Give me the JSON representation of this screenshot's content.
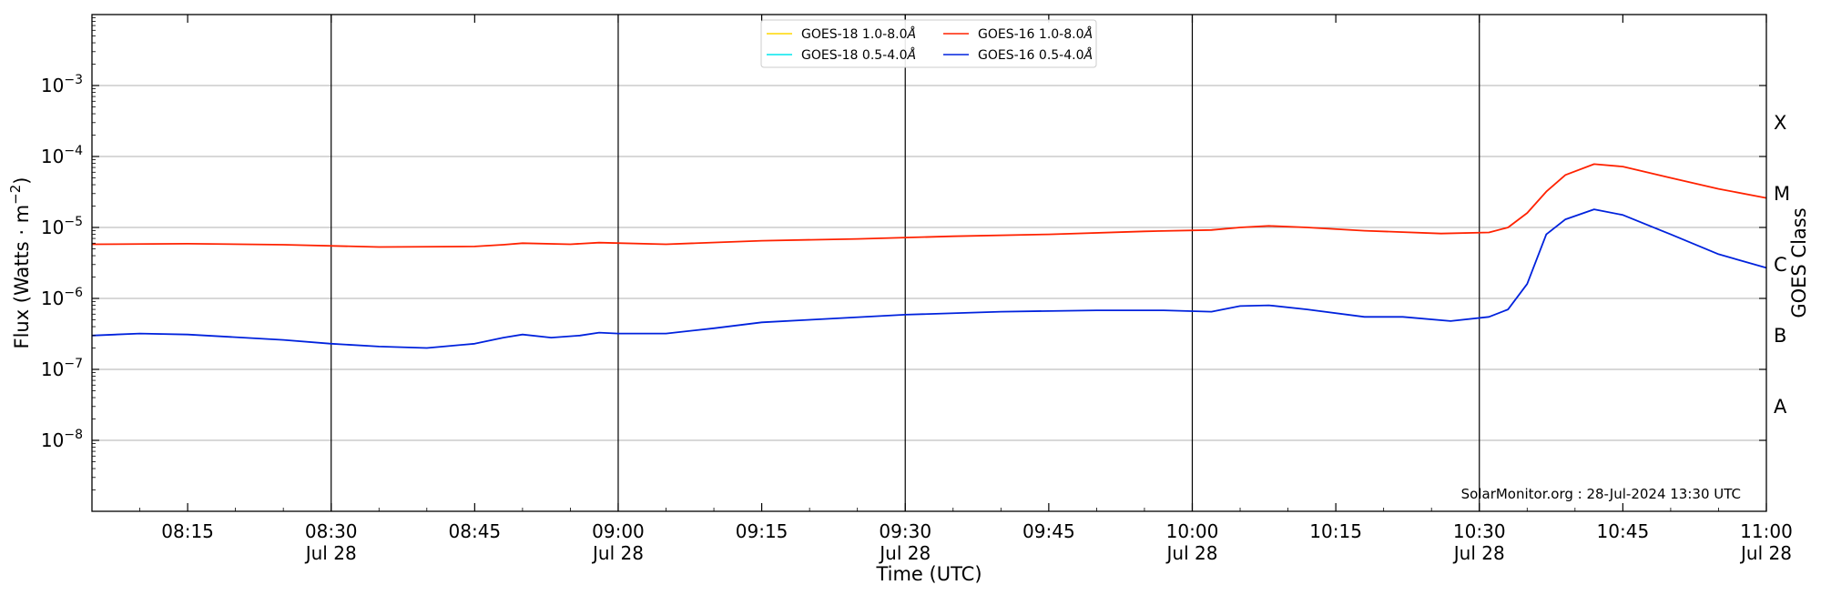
{
  "chart_data": {
    "type": "line",
    "title": "",
    "xlabel": "Time (UTC)",
    "ylabel": "Flux (Watts · m",
    "ylabel_sup": "−2",
    "ylabel_close": ")",
    "y2label": "GOES Class",
    "yscale": "log",
    "xlim": [
      "08:05",
      "11:00"
    ],
    "ylim": [
      1e-09,
      0.01
    ],
    "grid": "horizontal",
    "legend_position": "top-center",
    "x_ticks": [
      {
        "time": "08:15",
        "label": "08:15",
        "date": ""
      },
      {
        "time": "08:30",
        "label": "08:30",
        "date": "Jul 28"
      },
      {
        "time": "08:45",
        "label": "08:45",
        "date": ""
      },
      {
        "time": "09:00",
        "label": "09:00",
        "date": "Jul 28"
      },
      {
        "time": "09:15",
        "label": "09:15",
        "date": ""
      },
      {
        "time": "09:30",
        "label": "09:30",
        "date": "Jul 28"
      },
      {
        "time": "09:45",
        "label": "09:45",
        "date": ""
      },
      {
        "time": "10:00",
        "label": "10:00",
        "date": "Jul 28"
      },
      {
        "time": "10:15",
        "label": "10:15",
        "date": ""
      },
      {
        "time": "10:30",
        "label": "10:30",
        "date": "Jul 28"
      },
      {
        "time": "10:45",
        "label": "10:45",
        "date": ""
      },
      {
        "time": "11:00",
        "label": "11:00",
        "date": "Jul 28"
      }
    ],
    "vlines": [
      "08:30",
      "09:00",
      "09:30",
      "10:00",
      "10:30"
    ],
    "y_ticks": [
      {
        "value": 1e-08,
        "base": "10",
        "exp": "−8"
      },
      {
        "value": 1e-07,
        "base": "10",
        "exp": "−7"
      },
      {
        "value": 1e-06,
        "base": "10",
        "exp": "−6"
      },
      {
        "value": 1e-05,
        "base": "10",
        "exp": "−5"
      },
      {
        "value": 0.0001,
        "base": "10",
        "exp": "−4"
      },
      {
        "value": 0.001,
        "base": "10",
        "exp": "−3"
      }
    ],
    "goes_classes": [
      {
        "label": "A",
        "value": 3e-08
      },
      {
        "label": "B",
        "value": 3e-07
      },
      {
        "label": "C",
        "value": 3e-06
      },
      {
        "label": "M",
        "value": 3e-05
      },
      {
        "label": "X",
        "value": 0.0003
      }
    ],
    "series": [
      {
        "name": "GOES-18 1.0-8.0",
        "unit": "Å",
        "color": "#ffd700",
        "points": []
      },
      {
        "name": "GOES-18 0.5-4.0",
        "unit": "Å",
        "color": "#00e5ee",
        "points": []
      },
      {
        "name": "GOES-16 1.0-8.0",
        "unit": "Å",
        "color": "#ff2200",
        "points": [
          [
            "08:05",
            5.8e-06
          ],
          [
            "08:15",
            5.9e-06
          ],
          [
            "08:25",
            5.7e-06
          ],
          [
            "08:35",
            5.3e-06
          ],
          [
            "08:45",
            5.4e-06
          ],
          [
            "08:48",
            5.7e-06
          ],
          [
            "08:50",
            6e-06
          ],
          [
            "08:55",
            5.8e-06
          ],
          [
            "08:58",
            6.1e-06
          ],
          [
            "09:05",
            5.8e-06
          ],
          [
            "09:15",
            6.5e-06
          ],
          [
            "09:25",
            6.9e-06
          ],
          [
            "09:35",
            7.5e-06
          ],
          [
            "09:45",
            8e-06
          ],
          [
            "09:55",
            8.8e-06
          ],
          [
            "10:02",
            9.2e-06
          ],
          [
            "10:05",
            1e-05
          ],
          [
            "10:08",
            1.05e-05
          ],
          [
            "10:12",
            1e-05
          ],
          [
            "10:18",
            9e-06
          ],
          [
            "10:26",
            8.2e-06
          ],
          [
            "10:31",
            8.5e-06
          ],
          [
            "10:33",
            1e-05
          ],
          [
            "10:35",
            1.6e-05
          ],
          [
            "10:37",
            3.2e-05
          ],
          [
            "10:39",
            5.5e-05
          ],
          [
            "10:42",
            7.8e-05
          ],
          [
            "10:45",
            7.2e-05
          ],
          [
            "10:50",
            5e-05
          ],
          [
            "10:55",
            3.5e-05
          ],
          [
            "11:00",
            2.6e-05
          ]
        ]
      },
      {
        "name": "GOES-16 0.5-4.0",
        "unit": "Å",
        "color": "#0022dd",
        "points": [
          [
            "08:05",
            3e-07
          ],
          [
            "08:10",
            3.2e-07
          ],
          [
            "08:15",
            3.1e-07
          ],
          [
            "08:25",
            2.6e-07
          ],
          [
            "08:30",
            2.3e-07
          ],
          [
            "08:35",
            2.1e-07
          ],
          [
            "08:40",
            2e-07
          ],
          [
            "08:45",
            2.3e-07
          ],
          [
            "08:48",
            2.8e-07
          ],
          [
            "08:50",
            3.1e-07
          ],
          [
            "08:53",
            2.8e-07
          ],
          [
            "08:56",
            3e-07
          ],
          [
            "08:58",
            3.3e-07
          ],
          [
            "09:00",
            3.2e-07
          ],
          [
            "09:05",
            3.2e-07
          ],
          [
            "09:10",
            3.8e-07
          ],
          [
            "09:15",
            4.6e-07
          ],
          [
            "09:20",
            5e-07
          ],
          [
            "09:30",
            5.9e-07
          ],
          [
            "09:40",
            6.5e-07
          ],
          [
            "09:50",
            6.8e-07
          ],
          [
            "09:57",
            6.8e-07
          ],
          [
            "10:02",
            6.5e-07
          ],
          [
            "10:05",
            7.8e-07
          ],
          [
            "10:08",
            8e-07
          ],
          [
            "10:12",
            7e-07
          ],
          [
            "10:18",
            5.5e-07
          ],
          [
            "10:22",
            5.5e-07
          ],
          [
            "10:27",
            4.8e-07
          ],
          [
            "10:31",
            5.5e-07
          ],
          [
            "10:33",
            7e-07
          ],
          [
            "10:35",
            1.6e-06
          ],
          [
            "10:37",
            8e-06
          ],
          [
            "10:39",
            1.3e-05
          ],
          [
            "10:42",
            1.8e-05
          ],
          [
            "10:45",
            1.5e-05
          ],
          [
            "10:50",
            8e-06
          ],
          [
            "10:55",
            4.2e-06
          ],
          [
            "11:00",
            2.7e-06
          ]
        ]
      }
    ],
    "legend_order": [
      0,
      1,
      2,
      3
    ],
    "watermark": "SolarMonitor.org : 28-Jul-2024 13:30 UTC"
  }
}
